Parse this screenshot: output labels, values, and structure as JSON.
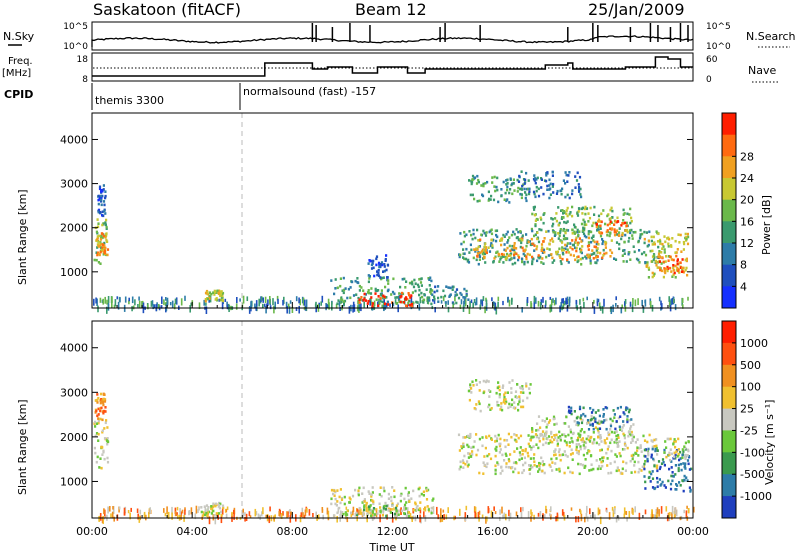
{
  "header": {
    "station": "Saskatoon (fitACF)",
    "beam": "Beam 12",
    "date": "25/Jan/2009"
  },
  "strip": {
    "nsky_label": "N.Sky",
    "nsky_ticks": [
      "10^5",
      "10^0"
    ],
    "nsearch_label": "N.Search",
    "nsearch_ticks": [
      "10^5",
      "10^0"
    ],
    "freq_label": "Freq.",
    "freq_unit": "[MHz]",
    "freq_ticks": [
      "18",
      "8"
    ],
    "nave_label": "Nave",
    "nave_ticks": [
      "60",
      "0"
    ],
    "cpid_label": "CPID",
    "cpid_segments": [
      "themis 3300",
      "normalsound (fast) -157"
    ]
  },
  "chart_data": [
    {
      "type": "heatmap",
      "panel": "power",
      "xlabel": "",
      "ylabel": "Slant Range [km]",
      "ylim": [
        180,
        4600
      ],
      "xlim_hours": [
        0,
        24
      ],
      "y_ticks": [
        "1000",
        "2000",
        "3000",
        "4000"
      ],
      "colorbar": {
        "label": "Power [dB]",
        "ticks": [
          "4",
          "8",
          "12",
          "16",
          "20",
          "24",
          "28"
        ],
        "colors": [
          "#1530ff",
          "#1f4fbe",
          "#2d7ca8",
          "#3a9a6e",
          "#6ab84a",
          "#c8c832",
          "#f0a020",
          "#ff6a10",
          "#ff1e00"
        ]
      },
      "blobs": [
        {
          "t0": 0.05,
          "t1": 0.55,
          "r0": 1200,
          "r1": 2300,
          "c": 4
        },
        {
          "t0": 0.15,
          "t1": 0.6,
          "r0": 1400,
          "r1": 1900,
          "c": 6
        },
        {
          "t0": 0.2,
          "t1": 0.5,
          "r0": 2300,
          "r1": 3000,
          "c": 1
        },
        {
          "t0": 4.5,
          "t1": 5.2,
          "r0": 350,
          "r1": 600,
          "c": 5
        },
        {
          "t0": 9.5,
          "t1": 13.6,
          "r0": 300,
          "r1": 900,
          "c": 3
        },
        {
          "t0": 10.6,
          "t1": 12.8,
          "r0": 250,
          "r1": 550,
          "c": 8
        },
        {
          "t0": 11.0,
          "t1": 11.8,
          "r0": 900,
          "r1": 1400,
          "c": 1
        },
        {
          "t0": 13.5,
          "t1": 15.0,
          "r0": 300,
          "r1": 700,
          "c": 2
        },
        {
          "t0": 14.6,
          "t1": 22.6,
          "r0": 1200,
          "r1": 2000,
          "c": 3
        },
        {
          "t0": 15.2,
          "t1": 20.8,
          "r0": 1300,
          "r1": 1800,
          "c": 6
        },
        {
          "t0": 15.0,
          "t1": 17.5,
          "r0": 2600,
          "r1": 3200,
          "c": 3
        },
        {
          "t0": 17.5,
          "t1": 21.6,
          "r0": 1900,
          "r1": 2500,
          "c": 4
        },
        {
          "t0": 20.0,
          "t1": 21.4,
          "r0": 1850,
          "r1": 2200,
          "c": 7
        },
        {
          "t0": 17.0,
          "t1": 19.5,
          "r0": 2700,
          "r1": 3300,
          "c": 2
        },
        {
          "t0": 22.0,
          "t1": 23.8,
          "r0": 900,
          "r1": 1900,
          "c": 5
        },
        {
          "t0": 22.6,
          "t1": 23.6,
          "r0": 1000,
          "r1": 1400,
          "c": 7
        }
      ]
    },
    {
      "type": "heatmap",
      "panel": "velocity",
      "xlabel": "Time UT",
      "ylabel": "Slant Range [km]",
      "ylim": [
        180,
        4600
      ],
      "xlim_hours": [
        0,
        24
      ],
      "y_ticks": [
        "1000",
        "2000",
        "3000",
        "4000"
      ],
      "x_ticks": [
        "00:00",
        "04:00",
        "08:00",
        "12:00",
        "16:00",
        "20:00",
        "00:00"
      ],
      "colorbar": {
        "label": "Velocity [m s⁻¹]",
        "ticks": [
          "1000",
          "500",
          "100",
          "25",
          "-25",
          "-100",
          "-500",
          "-1000"
        ],
        "colors": [
          "#1f3fbe",
          "#2d7ca8",
          "#3a9a4e",
          "#6ac83a",
          "#c8c8c0",
          "#f0c030",
          "#f09020",
          "#ff5010",
          "#ff1e00"
        ]
      },
      "blobs": [
        {
          "t0": 0.05,
          "t1": 0.6,
          "r0": 1300,
          "r1": 2400,
          "c": 4
        },
        {
          "t0": 0.1,
          "t1": 0.5,
          "r0": 2400,
          "r1": 3000,
          "c": 6
        },
        {
          "t0": 4.3,
          "t1": 5.2,
          "r0": 250,
          "r1": 550,
          "c": 4
        },
        {
          "t0": 9.5,
          "t1": 13.6,
          "r0": 250,
          "r1": 900,
          "c": 4
        },
        {
          "t0": 10.5,
          "t1": 12.5,
          "r0": 250,
          "r1": 500,
          "c": 3
        },
        {
          "t0": 14.6,
          "t1": 22.6,
          "r0": 1200,
          "r1": 2100,
          "c": 4
        },
        {
          "t0": 15.0,
          "t1": 17.5,
          "r0": 2600,
          "r1": 3300,
          "c": 4
        },
        {
          "t0": 17.5,
          "t1": 21.6,
          "r0": 1900,
          "r1": 2500,
          "c": 4
        },
        {
          "t0": 19.0,
          "t1": 21.5,
          "r0": 2200,
          "r1": 2700,
          "c": 1
        },
        {
          "t0": 22.0,
          "t1": 23.9,
          "r0": 800,
          "r1": 1800,
          "c": 1
        },
        {
          "t0": 22.8,
          "t1": 23.8,
          "r0": 1500,
          "r1": 2000,
          "c": 4
        }
      ]
    }
  ]
}
